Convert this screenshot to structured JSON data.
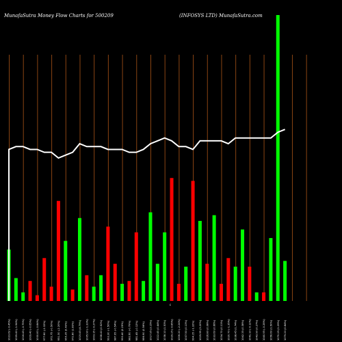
{
  "header": {
    "left_title": "MunafaSutra  Money Flow  Charts for 500209",
    "right_title": "(INFOSYS LTD) MunafaSutra.com"
  },
  "colors": {
    "background": "#000000",
    "up": "#00ff00",
    "down": "#ff0000",
    "grid": "#8b4513",
    "line": "#ffffff",
    "text": "#ffffff"
  },
  "chart_data": {
    "type": "bar",
    "title": "",
    "xlabel": "",
    "ylabel": "",
    "x_range": [
      1,
      44
    ],
    "ylim": [
      0,
      100
    ],
    "grid": "vertical",
    "legend": "none",
    "grid_positions": [
      1,
      3,
      5,
      7,
      9,
      11,
      13,
      15,
      17,
      19,
      21,
      23,
      25,
      27,
      29,
      31,
      33,
      35,
      37,
      39,
      41,
      43
    ],
    "bars": [
      {
        "x": 1,
        "v": 18,
        "dir": "up"
      },
      {
        "x": 2,
        "v": 8,
        "dir": "up"
      },
      {
        "x": 3,
        "v": 3,
        "dir": "up"
      },
      {
        "x": 4,
        "v": 7,
        "dir": "down"
      },
      {
        "x": 5,
        "v": 2,
        "dir": "down"
      },
      {
        "x": 6,
        "v": 15,
        "dir": "down"
      },
      {
        "x": 7,
        "v": 5,
        "dir": "down"
      },
      {
        "x": 8,
        "v": 35,
        "dir": "down"
      },
      {
        "x": 9,
        "v": 21,
        "dir": "up"
      },
      {
        "x": 10,
        "v": 4,
        "dir": "down"
      },
      {
        "x": 11,
        "v": 29,
        "dir": "up"
      },
      {
        "x": 12,
        "v": 9,
        "dir": "down"
      },
      {
        "x": 13,
        "v": 5,
        "dir": "up"
      },
      {
        "x": 14,
        "v": 9,
        "dir": "up"
      },
      {
        "x": 15,
        "v": 26,
        "dir": "down"
      },
      {
        "x": 16,
        "v": 13,
        "dir": "down"
      },
      {
        "x": 17,
        "v": 6,
        "dir": "up"
      },
      {
        "x": 18,
        "v": 7,
        "dir": "down"
      },
      {
        "x": 19,
        "v": 24,
        "dir": "down"
      },
      {
        "x": 20,
        "v": 7,
        "dir": "up"
      },
      {
        "x": 21,
        "v": 31,
        "dir": "up"
      },
      {
        "x": 22,
        "v": 13,
        "dir": "up"
      },
      {
        "x": 23,
        "v": 24,
        "dir": "up"
      },
      {
        "x": 24,
        "v": 43,
        "dir": "down"
      },
      {
        "x": 25,
        "v": 6,
        "dir": "down"
      },
      {
        "x": 26,
        "v": 12,
        "dir": "up"
      },
      {
        "x": 27,
        "v": 42,
        "dir": "down"
      },
      {
        "x": 28,
        "v": 28,
        "dir": "up"
      },
      {
        "x": 29,
        "v": 13,
        "dir": "down"
      },
      {
        "x": 30,
        "v": 30,
        "dir": "up"
      },
      {
        "x": 31,
        "v": 6,
        "dir": "down"
      },
      {
        "x": 32,
        "v": 15,
        "dir": "down"
      },
      {
        "x": 33,
        "v": 12,
        "dir": "up"
      },
      {
        "x": 34,
        "v": 25,
        "dir": "up"
      },
      {
        "x": 35,
        "v": 12,
        "dir": "down"
      },
      {
        "x": 36,
        "v": 3,
        "dir": "up"
      },
      {
        "x": 37,
        "v": 3,
        "dir": "down"
      },
      {
        "x": 38,
        "v": 22,
        "dir": "up"
      },
      {
        "x": 39,
        "v": 100,
        "dir": "up"
      },
      {
        "x": 40,
        "v": 14,
        "dir": "up"
      }
    ],
    "line": {
      "x": [
        1,
        2,
        3,
        4,
        5,
        6,
        7,
        8,
        9,
        10,
        11,
        12,
        13,
        14,
        15,
        16,
        17,
        18,
        19,
        20,
        21,
        22,
        23,
        24,
        25,
        26,
        27,
        28,
        29,
        30,
        31,
        32,
        33,
        34,
        35,
        36,
        37,
        38,
        39,
        40
      ],
      "values": [
        53,
        54,
        54,
        53,
        53,
        52,
        52,
        50,
        51,
        52,
        55,
        54,
        54,
        54,
        53,
        53,
        53,
        52,
        52,
        53,
        55,
        56,
        57,
        56,
        54,
        54,
        53,
        56,
        56,
        56,
        56,
        55,
        57,
        57,
        57,
        57,
        57,
        57,
        59,
        60
      ]
    },
    "x_tick_labels": [
      "1023.62 (-0.45%)",
      "1009.40 (-1.94%)",
      "1016.45 (-0.75%)",
      "1009.40 (-0.65%)",
      "1000.83 (-0.84%)",
      "977.60 (-2.32%)",
      "972.75 (-0.50%)",
      "951.30 (-2.20%)",
      "955.35 (0.43%)",
      "972.80 (1.83%)",
      "1019.45 (4.79%)",
      "1005.90 (-1.33%)",
      "1003.15 (-0.27%)",
      "1008.40 (0.52%)",
      "993.30 (-1.50%)",
      "987.95 (-0.54%)",
      "990.40 (0.25%)",
      "982.60 (-0.79%)",
      "981.45 (-0.12%)",
      "986.90 (0.56%)",
      "1017.95 (3.15%)",
      "1022.45 (0.44%)",
      "1038.10 (1.53%)",
      "1029.25 (-0.85%)",
      "1006.20 (-2.24%)",
      "1007.50 (0.13%)",
      "994.15 (-1.32%)",
      "1025.95 (3.20%)",
      "1026.80 (0.08%)",
      "1033.60 (0.66%)",
      "1034.70 (0.11%)",
      "1020.70 (-1.35%)",
      "1038.45 (1.74%)",
      "1042.35 (0.38%)",
      "1041.10 (-0.12%)",
      "1043.90 (0.27%)",
      "1040.95 (-0.28%)",
      "1056.60 (1.50%)",
      "1070.25 (1.29%)",
      "1079.20 (0.84%)"
    ],
    "center_marker": "c"
  }
}
